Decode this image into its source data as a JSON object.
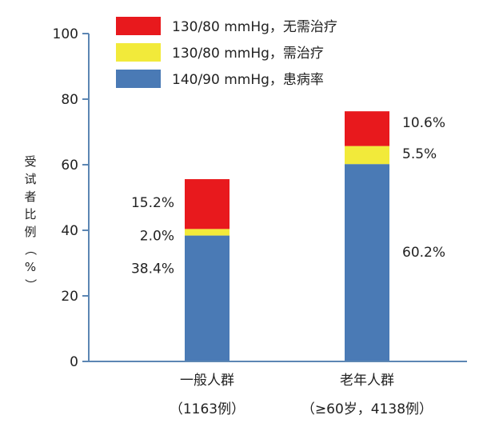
{
  "chart_data": {
    "type": "bar",
    "stacked": true,
    "title": "",
    "xlabel": "",
    "ylabel": "受试者比例（%）",
    "ylim": [
      0,
      100
    ],
    "yticks": [
      "0",
      "20",
      "40",
      "60",
      "80",
      "100"
    ],
    "grid": false,
    "legend_position": "top-left",
    "categories": [
      {
        "name": "一般人群",
        "sub": "（1163例）"
      },
      {
        "name": "老年人群",
        "sub": "（≥60岁，4138例）"
      }
    ],
    "series": [
      {
        "name": "140/90 mmHg，患病率",
        "color": "#4a7ab5",
        "values": [
          38.4,
          60.2
        ],
        "labels": [
          "38.4%",
          "60.2%"
        ]
      },
      {
        "name": "130/80 mmHg，需治疗",
        "color": "#f2ea3a",
        "values": [
          2.0,
          5.5
        ],
        "labels": [
          "2.0%",
          "5.5%"
        ]
      },
      {
        "name": "130/80 mmHg，无需治疗",
        "color": "#e8191d",
        "values": [
          15.2,
          10.6
        ],
        "labels": [
          "15.2%",
          "10.6%"
        ]
      }
    ],
    "legend_order": [
      2,
      1,
      0
    ]
  }
}
